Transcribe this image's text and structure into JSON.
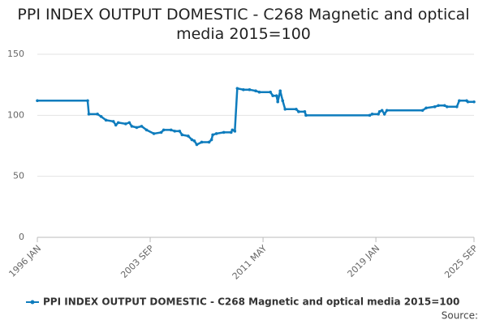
{
  "chart_data": {
    "type": "line",
    "title": "PPI INDEX OUTPUT DOMESTIC - C268 Magnetic and optical media 2015=100",
    "x": [
      "1996 JAN",
      "1999 JUN",
      "1999 JUL",
      "2000 FEB",
      "2000 MAY",
      "2000 SEP",
      "2001 MAR",
      "2001 MAY",
      "2001 JUL",
      "2002 JAN",
      "2002 APR",
      "2002 JUN",
      "2002 OCT",
      "2003 FEB",
      "2003 JUN",
      "2003 DEC",
      "2004 JUN",
      "2004 AUG",
      "2005 FEB",
      "2005 MAY",
      "2005 SEP",
      "2005 NOV",
      "2006 APR",
      "2006 JUL",
      "2006 SEP",
      "2006 NOV",
      "2007 MAR",
      "2007 SEP",
      "2007 NOV",
      "2007 DEC",
      "2008 MAR",
      "2008 SEP",
      "2009 MAR",
      "2009 APR",
      "2009 JUN",
      "2009 AUG",
      "2010 JAN",
      "2010 JUN",
      "2010 NOV",
      "2011 FEB",
      "2011 NOV",
      "2012 JAN",
      "2012 APR",
      "2012 MAY",
      "2012 JUL",
      "2012 SEP",
      "2012 NOV",
      "2013 AUG",
      "2013 OCT",
      "2014 MAR",
      "2014 APR",
      "2018 AUG",
      "2018 OCT",
      "2019 MAR",
      "2019 APR",
      "2019 JUN",
      "2019 AUG",
      "2019 OCT",
      "2022 MAR",
      "2022 JUN",
      "2023 JAN",
      "2023 APR",
      "2023 SEP",
      "2023 NOV",
      "2024 JUL",
      "2024 SEP",
      "2025 MAR",
      "2025 APR",
      "2025 SEP"
    ],
    "series": [
      {
        "name": "PPI INDEX OUTPUT DOMESTIC - C268 Magnetic and optical media 2015=100",
        "color": "#0e7cbd",
        "values": [
          112,
          112,
          101,
          101,
          99,
          96,
          95,
          92,
          94,
          93,
          94,
          91,
          90,
          91,
          88,
          85,
          86,
          88,
          88,
          87,
          87,
          84,
          83,
          80,
          79,
          76,
          78,
          78,
          80,
          84,
          85,
          86,
          86,
          88,
          87,
          122,
          121,
          121,
          120,
          119,
          119,
          116,
          116,
          111,
          120,
          112,
          105,
          105,
          103,
          103,
          100,
          100,
          101,
          101,
          103,
          104,
          101,
          104,
          104,
          106,
          107,
          108,
          108,
          107,
          107,
          112,
          112,
          111,
          111
        ]
      }
    ],
    "xlim": [
      "1996 JAN",
      "2025 SEP"
    ],
    "xticks": [
      "1996 JAN",
      "2003 SEP",
      "2011 MAY",
      "2019 JAN",
      "2025 SEP"
    ],
    "ylim": [
      0,
      150
    ],
    "yticks": [
      0,
      50,
      100,
      150
    ],
    "grid": true,
    "source_label": "Source:"
  }
}
